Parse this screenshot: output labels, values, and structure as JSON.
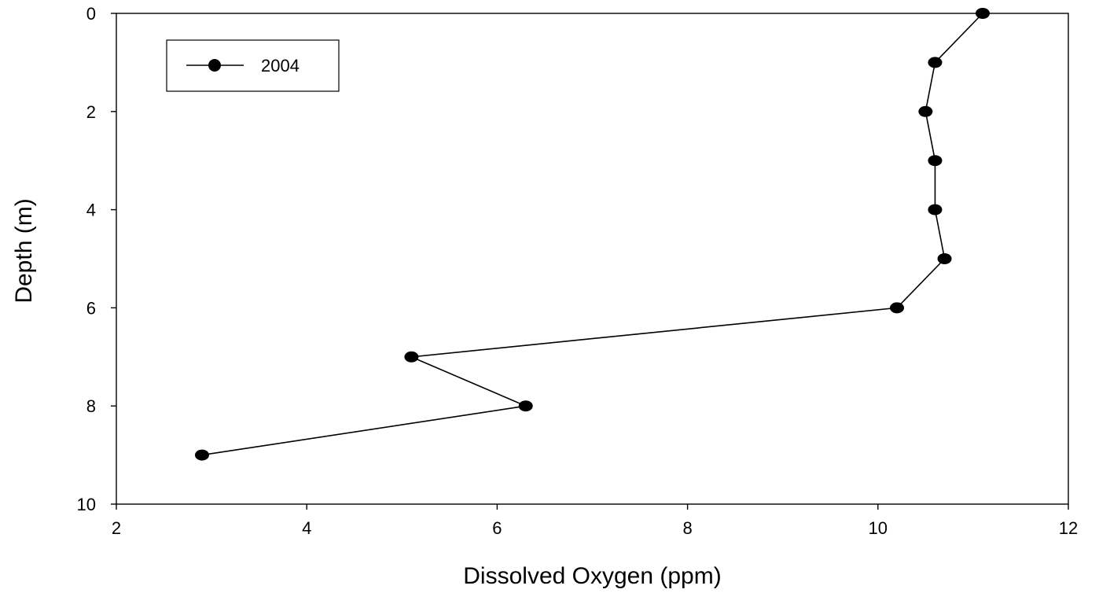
{
  "chart_data": {
    "type": "line",
    "xlabel": "Dissolved Oxygen (ppm)",
    "ylabel": "Depth (m)",
    "xlim": [
      2,
      12
    ],
    "ylim": [
      0,
      10
    ],
    "y_inverted": true,
    "x_ticks": [
      "2",
      "4",
      "6",
      "8",
      "10",
      "12"
    ],
    "y_ticks": [
      "0",
      "2",
      "4",
      "6",
      "8",
      "10"
    ],
    "grid": false,
    "legend_position": "top-left",
    "series": [
      {
        "name": "2004",
        "color": "#000000",
        "marker": "filled-circle",
        "points": [
          {
            "x": 11.1,
            "y": 0
          },
          {
            "x": 10.6,
            "y": 1
          },
          {
            "x": 10.5,
            "y": 2
          },
          {
            "x": 10.6,
            "y": 3
          },
          {
            "x": 10.6,
            "y": 4
          },
          {
            "x": 10.7,
            "y": 5
          },
          {
            "x": 10.2,
            "y": 6
          },
          {
            "x": 5.1,
            "y": 7
          },
          {
            "x": 6.3,
            "y": 8
          },
          {
            "x": 2.9,
            "y": 9
          }
        ]
      }
    ]
  }
}
